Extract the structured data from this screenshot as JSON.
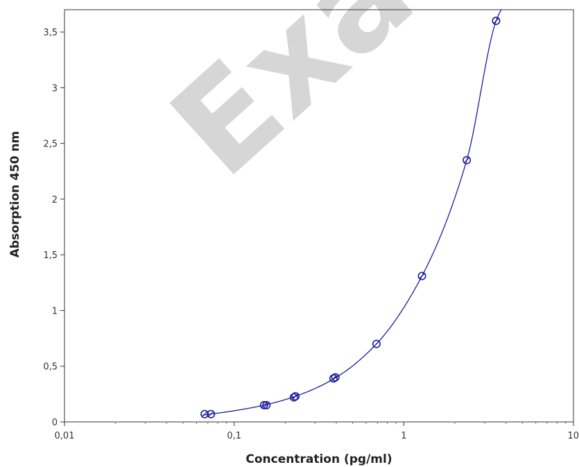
{
  "chart_data": {
    "type": "scatter",
    "xlabel": "Concentration (pg/ml)",
    "ylabel": "Absorption 450 nm",
    "x_scale": "log",
    "xlim": [
      0.01,
      10
    ],
    "ylim": [
      0,
      3.7
    ],
    "x_ticks": [
      0.01,
      0.1,
      1,
      10
    ],
    "x_tick_labels": [
      "0,01",
      "0,1",
      "1",
      "10"
    ],
    "y_ticks": [
      0,
      0.5,
      1,
      1.5,
      2,
      2.5,
      3,
      3.5
    ],
    "y_tick_labels": [
      "0",
      "0,5",
      "1",
      "1,5",
      "2",
      "2,5",
      "3",
      "3,5"
    ],
    "grid": false,
    "points": [
      {
        "x": 0.067,
        "y": 0.07
      },
      {
        "x": 0.073,
        "y": 0.07
      },
      {
        "x": 0.15,
        "y": 0.15
      },
      {
        "x": 0.155,
        "y": 0.15
      },
      {
        "x": 0.225,
        "y": 0.22
      },
      {
        "x": 0.23,
        "y": 0.23
      },
      {
        "x": 0.385,
        "y": 0.39
      },
      {
        "x": 0.395,
        "y": 0.4
      },
      {
        "x": 0.69,
        "y": 0.7
      },
      {
        "x": 1.28,
        "y": 1.31
      },
      {
        "x": 2.35,
        "y": 2.35
      },
      {
        "x": 3.5,
        "y": 3.6
      }
    ],
    "fit_curve": {
      "x": [
        0.065,
        0.1,
        0.15,
        0.23,
        0.39,
        0.69,
        1.28,
        2.35,
        3.5,
        3.8
      ],
      "y": [
        0.06,
        0.1,
        0.15,
        0.23,
        0.39,
        0.7,
        1.31,
        2.35,
        3.6,
        3.72
      ]
    },
    "colors": {
      "series": "#1c1c9a",
      "axis": "#333333",
      "watermark": "#cfcfcf"
    },
    "watermark": "Exa"
  }
}
